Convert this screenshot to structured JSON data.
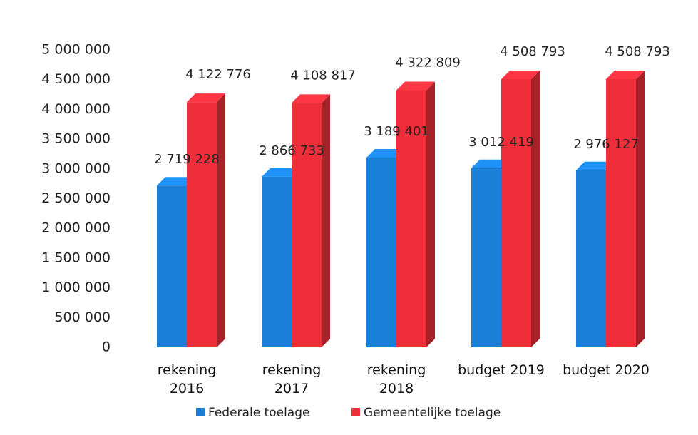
{
  "chart_data": {
    "type": "bar3d",
    "categories": [
      "rekening\n2016",
      "rekening\n2017",
      "rekening\n2018",
      "budget 2019",
      "budget 2020"
    ],
    "series": [
      {
        "name": "Federale toelage",
        "color": "#1a7fd6",
        "values": [
          2719228,
          2866733,
          3189401,
          3012419,
          2976127
        ],
        "value_labels": [
          "2 719 228",
          "2 866 733",
          "3 189 401",
          "3 012 419",
          "2 976 127"
        ]
      },
      {
        "name": "Gemeentelijke toelage",
        "color": "#ee2f3a",
        "values": [
          4122776,
          4108817,
          4322809,
          4508793,
          4508793
        ],
        "value_labels": [
          "4 122 776",
          "4 108 817",
          "4 322 809",
          "4 508 793",
          "4 508 793"
        ]
      }
    ],
    "ylim": [
      0,
      5000000
    ],
    "yticks": [
      0,
      {
        "value": 500000,
        "label": "500 000"
      },
      {
        "value": 1000000,
        "label": "1 000 000"
      },
      {
        "value": 1500000,
        "label": "1 500 000"
      },
      {
        "value": 2000000,
        "label": "2 000 000"
      },
      {
        "value": 2500000,
        "label": "2 500 000"
      },
      {
        "value": 3000000,
        "label": "3 000 000"
      },
      {
        "value": 3500000,
        "label": "3 500 000"
      },
      {
        "value": 4000000,
        "label": "4 000 000"
      },
      {
        "value": 4500000,
        "label": "4 500 000"
      },
      {
        "value": 5000000,
        "label": "5 000 000"
      }
    ],
    "grid": false,
    "legend": "bottom"
  }
}
